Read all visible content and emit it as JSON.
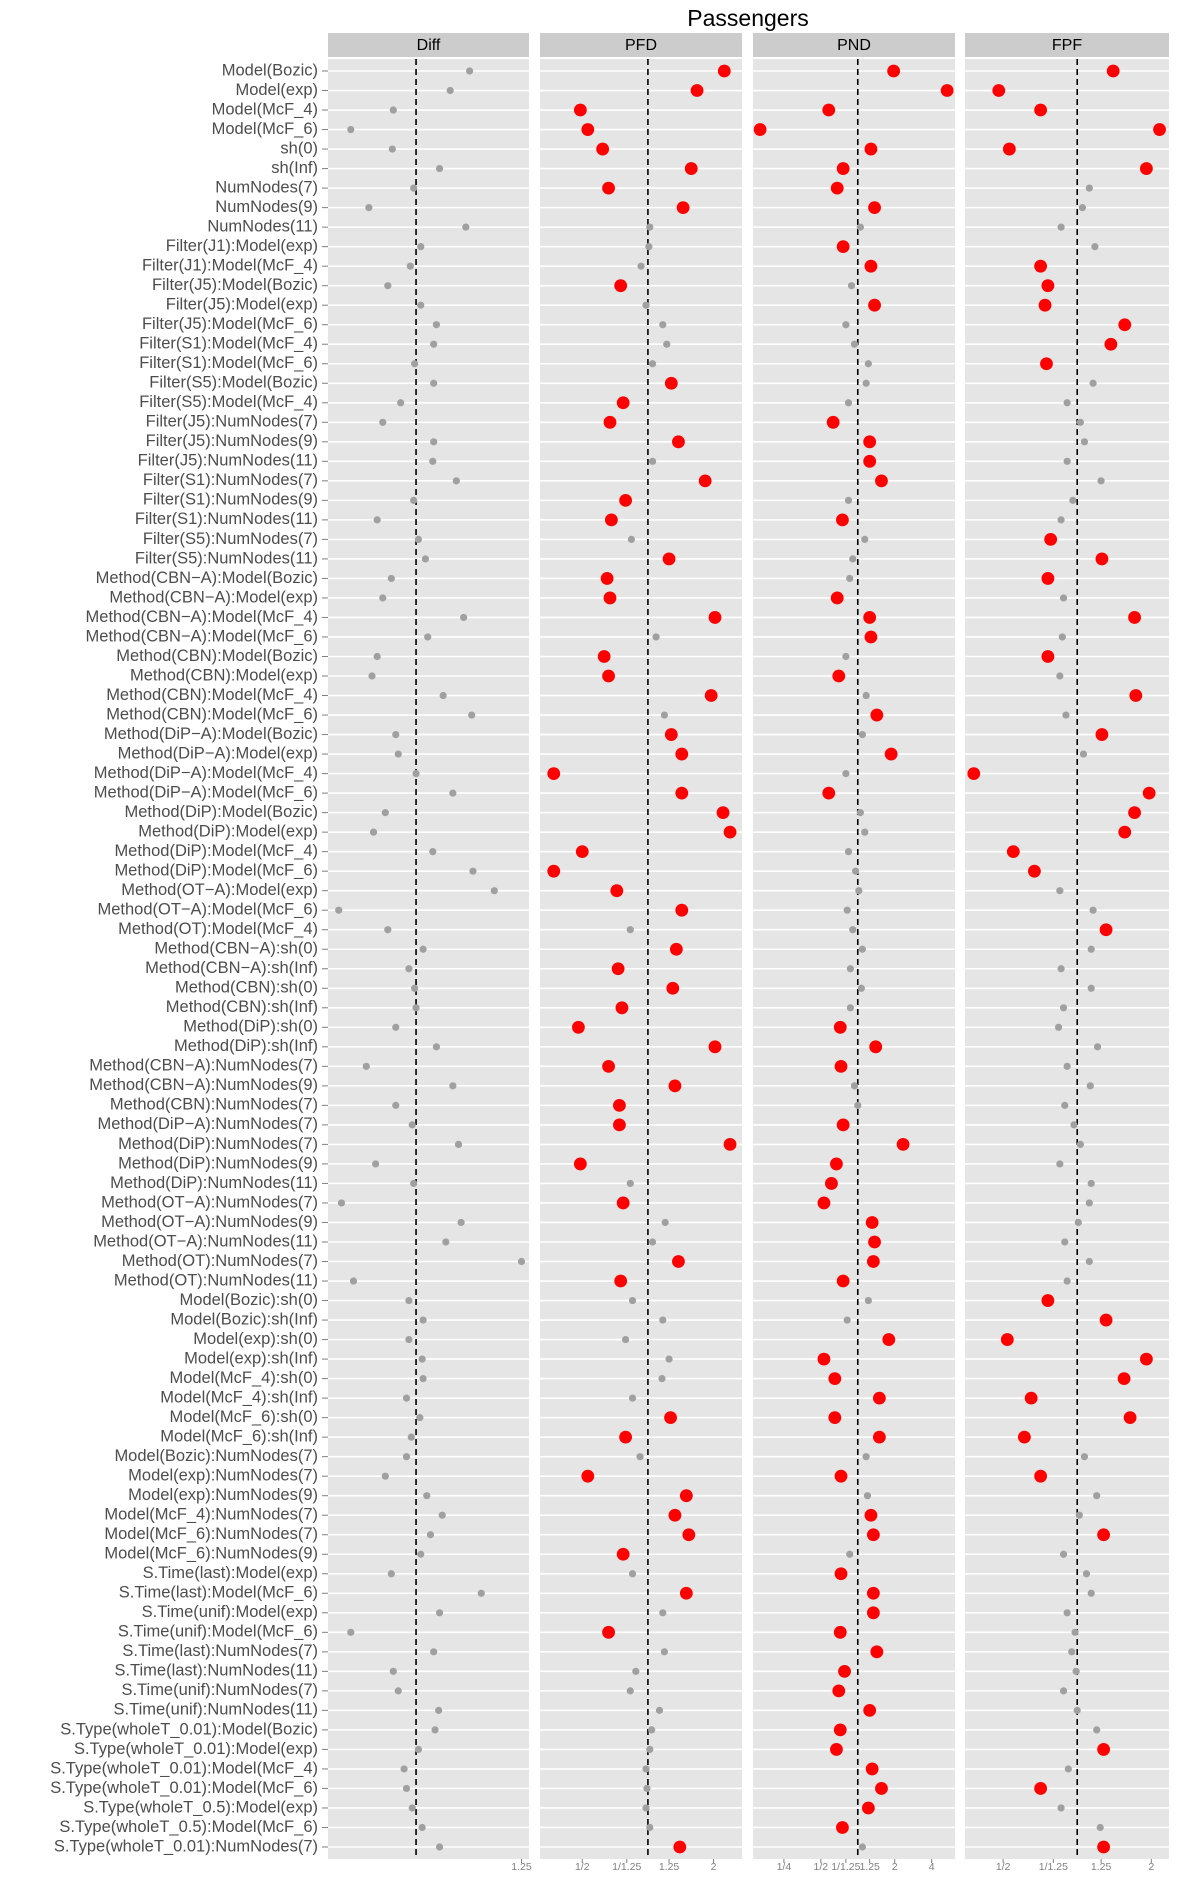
{
  "chart_data": {
    "type": "dot",
    "title": "Passengers",
    "categories": [
      "Model(Bozic)",
      "Model(exp)",
      "Model(McF_4)",
      "Model(McF_6)",
      "sh(0)",
      "sh(Inf)",
      "NumNodes(7)",
      "NumNodes(9)",
      "NumNodes(11)",
      "Filter(J1):Model(exp)",
      "Filter(J1):Model(McF_4)",
      "Filter(J5):Model(Bozic)",
      "Filter(J5):Model(exp)",
      "Filter(J5):Model(McF_6)",
      "Filter(S1):Model(McF_4)",
      "Filter(S1):Model(McF_6)",
      "Filter(S5):Model(Bozic)",
      "Filter(S5):Model(McF_4)",
      "Filter(J5):NumNodes(7)",
      "Filter(J5):NumNodes(9)",
      "Filter(J5):NumNodes(11)",
      "Filter(S1):NumNodes(7)",
      "Filter(S1):NumNodes(9)",
      "Filter(S1):NumNodes(11)",
      "Filter(S5):NumNodes(7)",
      "Filter(S5):NumNodes(11)",
      "Method(CBN−A):Model(Bozic)",
      "Method(CBN−A):Model(exp)",
      "Method(CBN−A):Model(McF_4)",
      "Method(CBN−A):Model(McF_6)",
      "Method(CBN):Model(Bozic)",
      "Method(CBN):Model(exp)",
      "Method(CBN):Model(McF_4)",
      "Method(CBN):Model(McF_6)",
      "Method(DiP−A):Model(Bozic)",
      "Method(DiP−A):Model(exp)",
      "Method(DiP−A):Model(McF_4)",
      "Method(DiP−A):Model(McF_6)",
      "Method(DiP):Model(Bozic)",
      "Method(DiP):Model(exp)",
      "Method(DiP):Model(McF_4)",
      "Method(DiP):Model(McF_6)",
      "Method(OT−A):Model(exp)",
      "Method(OT−A):Model(McF_6)",
      "Method(OT):Model(McF_4)",
      "Method(CBN−A):sh(0)",
      "Method(CBN−A):sh(Inf)",
      "Method(CBN):sh(0)",
      "Method(CBN):sh(Inf)",
      "Method(DiP):sh(0)",
      "Method(DiP):sh(Inf)",
      "Method(CBN−A):NumNodes(7)",
      "Method(CBN−A):NumNodes(9)",
      "Method(CBN):NumNodes(7)",
      "Method(DiP−A):NumNodes(7)",
      "Method(DiP):NumNodes(7)",
      "Method(DiP):NumNodes(9)",
      "Method(DiP):NumNodes(11)",
      "Method(OT−A):NumNodes(7)",
      "Method(OT−A):NumNodes(9)",
      "Method(OT−A):NumNodes(11)",
      "Method(OT):NumNodes(7)",
      "Method(OT):NumNodes(11)",
      "Model(Bozic):sh(0)",
      "Model(Bozic):sh(Inf)",
      "Model(exp):sh(0)",
      "Model(exp):sh(Inf)",
      "Model(McF_4):sh(0)",
      "Model(McF_4):sh(Inf)",
      "Model(McF_6):sh(0)",
      "Model(McF_6):sh(Inf)",
      "Model(Bozic):NumNodes(7)",
      "Model(exp):NumNodes(7)",
      "Model(exp):NumNodes(9)",
      "Model(McF_4):NumNodes(7)",
      "Model(McF_6):NumNodes(7)",
      "Model(McF_6):NumNodes(9)",
      "S.Time(last):Model(exp)",
      "S.Time(last):Model(McF_6)",
      "S.Time(unif):Model(exp)",
      "S.Time(unif):Model(McF_6)",
      "S.Time(last):NumNodes(7)",
      "S.Time(last):NumNodes(11)",
      "S.Time(unif):NumNodes(7)",
      "S.Time(unif):NumNodes(11)",
      "S.Type(wholeT_0.01):Model(Bozic)",
      "S.Type(wholeT_0.01):Model(exp)",
      "S.Type(wholeT_0.01):Model(McF_4)",
      "S.Type(wholeT_0.01):Model(McF_6)",
      "S.Type(wholeT_0.5):Model(exp)",
      "S.Type(wholeT_0.5):Model(McF_6)",
      "S.Type(wholeT_0.01):NumNodes(7)"
    ],
    "series": [
      {
        "name": "Diff",
        "xscale": "log",
        "xlim": [
          0.83,
          1.27
        ],
        "xticks": [
          1.25
        ],
        "reference": 1,
        "color": "#a0a0a0",
        "values": [
          1.12,
          1.075,
          0.953,
          0.871,
          0.951,
          1.051,
          0.995,
          0.905,
          1.111,
          1.01,
          0.988,
          0.942,
          1.01,
          1.044,
          1.038,
          0.997,
          1.038,
          0.968,
          0.932,
          1.038,
          1.036,
          1.089,
          0.995,
          0.921,
          1.005,
          1.02,
          0.949,
          0.932,
          1.106,
          1.025,
          0.921,
          0.911,
          1.059,
          1.125,
          0.958,
          0.963,
          1.0,
          1.081,
          0.937,
          0.914,
          1.036,
          1.128,
          1.18,
          0.849,
          0.942,
          1.015,
          0.985,
          0.997,
          1.0,
          0.958,
          1.044,
          0.9,
          1.081,
          0.958,
          0.992,
          1.094,
          0.918,
          0.995,
          0.854,
          1.1,
          1.065,
          1.25,
          0.876,
          0.985,
          1.015,
          0.985,
          1.013,
          1.015,
          0.98,
          1.008,
          0.99,
          0.98,
          0.937,
          1.023,
          1.057,
          1.031,
          1.01,
          0.949,
          1.148,
          1.051,
          0.871,
          1.038,
          0.953,
          0.963,
          1.049,
          1.041,
          1.005,
          0.975,
          0.98,
          0.992,
          1.013,
          1.051
        ]
      },
      {
        "name": "PFD",
        "xscale": "log",
        "xlim": [
          0.32,
          2.7
        ],
        "xticks": [
          {
            "value": 0.5,
            "label": "1/2"
          },
          {
            "value": 0.8,
            "label": "1/1.25"
          },
          1.25,
          2
        ],
        "reference": 1,
        "color": "#a0a0a0",
        "values": [
          2.24,
          1.68,
          0.49,
          0.53,
          0.62,
          1.58,
          0.66,
          1.45,
          1.02,
          1.01,
          0.93,
          0.75,
          0.98,
          1.17,
          1.22,
          1.05,
          1.28,
          0.77,
          0.67,
          1.38,
          1.05,
          1.83,
          0.79,
          0.68,
          0.84,
          1.25,
          0.65,
          0.67,
          2.03,
          1.09,
          0.63,
          0.66,
          1.95,
          1.19,
          1.28,
          1.43,
          0.37,
          1.43,
          2.21,
          2.38,
          0.5,
          0.37,
          0.72,
          1.43,
          0.83,
          1.35,
          0.73,
          1.3,
          0.76,
          0.48,
          2.03,
          0.66,
          1.33,
          0.74,
          0.74,
          2.38,
          0.49,
          0.83,
          0.77,
          1.2,
          1.05,
          1.38,
          0.75,
          0.85,
          1.17,
          0.79,
          1.25,
          1.16,
          0.85,
          1.27,
          0.79,
          0.92,
          0.53,
          1.5,
          1.33,
          1.54,
          0.77,
          0.85,
          1.5,
          1.17,
          0.66,
          1.19,
          0.88,
          0.83,
          1.13,
          1.04,
          1.02,
          0.98,
          0.99,
          0.98,
          1.02,
          1.4
        ],
        "colors": [
          "#ff0000",
          "#ff0000",
          "#ff0000",
          "#ff0000",
          "#ff0000",
          "#ff0000",
          "#ff0000",
          "#ff0000",
          "#a0a0a0",
          "#a0a0a0",
          "#a0a0a0",
          "#ff0000",
          "#a0a0a0",
          "#a0a0a0",
          "#a0a0a0",
          "#a0a0a0",
          "#ff0000",
          "#ff0000",
          "#ff0000",
          "#ff0000",
          "#a0a0a0",
          "#ff0000",
          "#ff0000",
          "#ff0000",
          "#a0a0a0",
          "#ff0000",
          "#ff0000",
          "#ff0000",
          "#ff0000",
          "#a0a0a0",
          "#ff0000",
          "#ff0000",
          "#ff0000",
          "#a0a0a0",
          "#ff0000",
          "#ff0000",
          "#ff0000",
          "#ff0000",
          "#ff0000",
          "#ff0000",
          "#ff0000",
          "#ff0000",
          "#ff0000",
          "#ff0000",
          "#a0a0a0",
          "#ff0000",
          "#ff0000",
          "#ff0000",
          "#ff0000",
          "#ff0000",
          "#ff0000",
          "#ff0000",
          "#ff0000",
          "#ff0000",
          "#ff0000",
          "#ff0000",
          "#ff0000",
          "#a0a0a0",
          "#ff0000",
          "#a0a0a0",
          "#a0a0a0",
          "#ff0000",
          "#ff0000",
          "#a0a0a0",
          "#a0a0a0",
          "#a0a0a0",
          "#a0a0a0",
          "#a0a0a0",
          "#a0a0a0",
          "#ff0000",
          "#ff0000",
          "#a0a0a0",
          "#ff0000",
          "#ff0000",
          "#ff0000",
          "#ff0000",
          "#ff0000",
          "#a0a0a0",
          "#ff0000",
          "#a0a0a0",
          "#ff0000",
          "#a0a0a0",
          "#a0a0a0",
          "#a0a0a0",
          "#a0a0a0",
          "#a0a0a0",
          "#a0a0a0",
          "#a0a0a0",
          "#a0a0a0",
          "#a0a0a0",
          "#a0a0a0",
          "#ff0000"
        ]
      },
      {
        "name": "PND",
        "xscale": "log",
        "xlim": [
          0.14,
          6.2
        ],
        "xticks": [
          {
            "value": 0.25,
            "label": "1/4"
          },
          {
            "value": 0.5,
            "label": "1/2"
          },
          {
            "value": 0.8,
            "label": "1/1.25"
          },
          1.25,
          2,
          4
        ],
        "reference": 1,
        "color": "#a0a0a0",
        "values": [
          1.96,
          5.35,
          0.58,
          0.16,
          1.28,
          0.76,
          0.68,
          1.37,
          1.05,
          0.76,
          1.28,
          0.89,
          1.37,
          0.8,
          0.94,
          1.22,
          1.17,
          0.84,
          0.63,
          1.25,
          1.25,
          1.56,
          0.84,
          0.75,
          1.14,
          0.91,
          0.86,
          0.68,
          1.25,
          1.28,
          0.8,
          0.7,
          1.17,
          1.43,
          1.09,
          1.87,
          0.8,
          0.58,
          1.05,
          1.14,
          0.84,
          0.96,
          1.02,
          0.82,
          0.91,
          1.09,
          0.87,
          1.07,
          0.87,
          0.72,
          1.4,
          0.73,
          0.94,
          1.0,
          0.76,
          2.34,
          0.67,
          0.61,
          0.53,
          1.31,
          1.37,
          1.34,
          0.76,
          1.22,
          0.82,
          1.79,
          0.53,
          0.65,
          1.5,
          0.65,
          1.5,
          1.17,
          0.73,
          1.2,
          1.28,
          1.34,
          0.86,
          0.73,
          1.34,
          1.34,
          0.72,
          1.43,
          0.78,
          0.7,
          1.25,
          0.72,
          0.67,
          1.31,
          1.56,
          1.22,
          0.75,
          1.09
        ],
        "colors": [
          "#ff0000",
          "#ff0000",
          "#ff0000",
          "#ff0000",
          "#ff0000",
          "#ff0000",
          "#ff0000",
          "#ff0000",
          "#a0a0a0",
          "#ff0000",
          "#ff0000",
          "#a0a0a0",
          "#ff0000",
          "#a0a0a0",
          "#a0a0a0",
          "#a0a0a0",
          "#a0a0a0",
          "#a0a0a0",
          "#ff0000",
          "#ff0000",
          "#ff0000",
          "#ff0000",
          "#a0a0a0",
          "#ff0000",
          "#a0a0a0",
          "#a0a0a0",
          "#a0a0a0",
          "#ff0000",
          "#ff0000",
          "#ff0000",
          "#a0a0a0",
          "#ff0000",
          "#a0a0a0",
          "#ff0000",
          "#a0a0a0",
          "#ff0000",
          "#a0a0a0",
          "#ff0000",
          "#a0a0a0",
          "#a0a0a0",
          "#a0a0a0",
          "#a0a0a0",
          "#a0a0a0",
          "#a0a0a0",
          "#a0a0a0",
          "#a0a0a0",
          "#a0a0a0",
          "#a0a0a0",
          "#a0a0a0",
          "#ff0000",
          "#ff0000",
          "#ff0000",
          "#a0a0a0",
          "#a0a0a0",
          "#ff0000",
          "#ff0000",
          "#ff0000",
          "#ff0000",
          "#ff0000",
          "#ff0000",
          "#ff0000",
          "#ff0000",
          "#ff0000",
          "#a0a0a0",
          "#a0a0a0",
          "#ff0000",
          "#ff0000",
          "#ff0000",
          "#ff0000",
          "#ff0000",
          "#ff0000",
          "#a0a0a0",
          "#ff0000",
          "#a0a0a0",
          "#ff0000",
          "#ff0000",
          "#a0a0a0",
          "#ff0000",
          "#ff0000",
          "#ff0000",
          "#ff0000",
          "#ff0000",
          "#ff0000",
          "#ff0000",
          "#ff0000",
          "#ff0000",
          "#ff0000",
          "#ff0000",
          "#ff0000",
          "#ff0000",
          "#ff0000",
          "#a0a0a0"
        ]
      },
      {
        "name": "FPF",
        "xscale": "log",
        "xlim": [
          0.35,
          2.36
        ],
        "xticks": [
          {
            "value": 0.5,
            "label": "1/2"
          },
          {
            "value": 0.8,
            "label": "1/1.25"
          },
          1.25,
          2
        ],
        "reference": 1,
        "color": "#a0a0a0",
        "values": [
          1.4,
          0.48,
          0.71,
          2.16,
          0.53,
          1.91,
          1.12,
          1.05,
          0.86,
          1.18,
          0.71,
          0.76,
          0.74,
          1.56,
          1.37,
          0.75,
          1.16,
          0.91,
          1.03,
          1.07,
          0.91,
          1.25,
          0.96,
          0.86,
          0.78,
          1.26,
          0.76,
          0.88,
          1.71,
          0.87,
          0.76,
          0.85,
          1.73,
          0.9,
          1.26,
          1.06,
          0.38,
          1.96,
          1.71,
          1.56,
          0.55,
          0.67,
          0.85,
          1.16,
          1.31,
          1.14,
          0.86,
          1.14,
          0.88,
          0.84,
          1.21,
          0.91,
          1.13,
          0.89,
          0.97,
          1.03,
          0.85,
          1.14,
          1.12,
          1.01,
          0.89,
          1.12,
          0.91,
          0.76,
          1.31,
          0.52,
          1.91,
          1.55,
          0.65,
          1.64,
          0.61,
          1.07,
          0.71,
          1.2,
          1.02,
          1.28,
          0.88,
          1.09,
          1.14,
          0.91,
          0.98,
          0.95,
          0.99,
          0.88,
          1.0,
          1.2,
          1.28,
          0.92,
          0.71,
          0.86,
          1.24,
          1.28
        ],
        "colors": [
          "#ff0000",
          "#ff0000",
          "#ff0000",
          "#ff0000",
          "#ff0000",
          "#ff0000",
          "#a0a0a0",
          "#a0a0a0",
          "#a0a0a0",
          "#a0a0a0",
          "#ff0000",
          "#ff0000",
          "#ff0000",
          "#ff0000",
          "#ff0000",
          "#ff0000",
          "#a0a0a0",
          "#a0a0a0",
          "#a0a0a0",
          "#a0a0a0",
          "#a0a0a0",
          "#a0a0a0",
          "#a0a0a0",
          "#a0a0a0",
          "#ff0000",
          "#ff0000",
          "#ff0000",
          "#a0a0a0",
          "#ff0000",
          "#a0a0a0",
          "#ff0000",
          "#a0a0a0",
          "#ff0000",
          "#a0a0a0",
          "#ff0000",
          "#a0a0a0",
          "#ff0000",
          "#ff0000",
          "#ff0000",
          "#ff0000",
          "#ff0000",
          "#ff0000",
          "#a0a0a0",
          "#a0a0a0",
          "#ff0000",
          "#a0a0a0",
          "#a0a0a0",
          "#a0a0a0",
          "#a0a0a0",
          "#a0a0a0",
          "#a0a0a0",
          "#a0a0a0",
          "#a0a0a0",
          "#a0a0a0",
          "#a0a0a0",
          "#a0a0a0",
          "#a0a0a0",
          "#a0a0a0",
          "#a0a0a0",
          "#a0a0a0",
          "#a0a0a0",
          "#a0a0a0",
          "#a0a0a0",
          "#ff0000",
          "#ff0000",
          "#ff0000",
          "#ff0000",
          "#ff0000",
          "#ff0000",
          "#ff0000",
          "#ff0000",
          "#a0a0a0",
          "#ff0000",
          "#a0a0a0",
          "#a0a0a0",
          "#ff0000",
          "#a0a0a0",
          "#a0a0a0",
          "#a0a0a0",
          "#a0a0a0",
          "#a0a0a0",
          "#a0a0a0",
          "#a0a0a0",
          "#a0a0a0",
          "#a0a0a0",
          "#a0a0a0",
          "#ff0000",
          "#a0a0a0",
          "#ff0000",
          "#a0a0a0",
          "#a0a0a0",
          "#ff0000"
        ]
      }
    ]
  }
}
